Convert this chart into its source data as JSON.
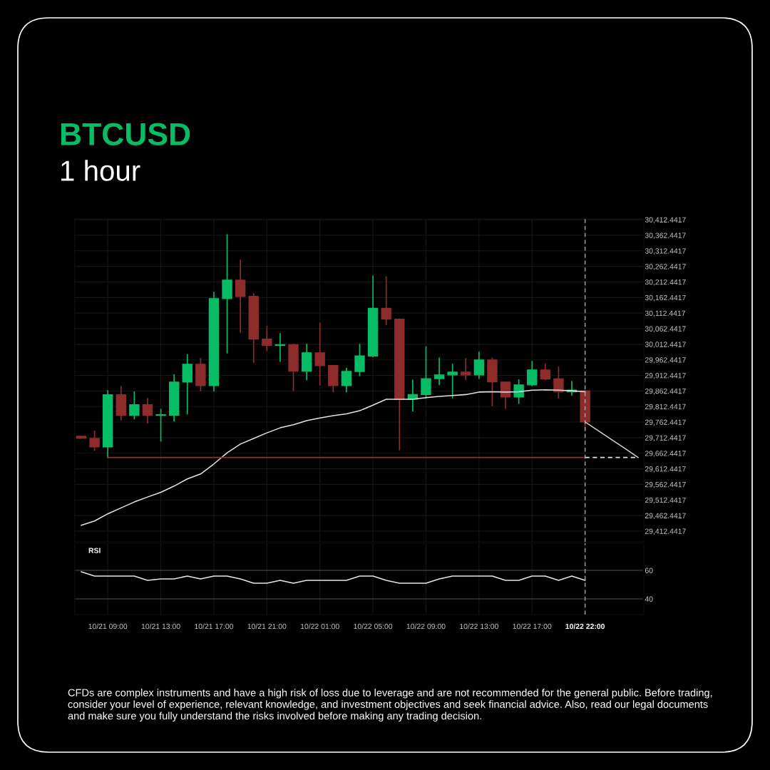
{
  "chart_data": [
    {
      "type": "candlestick",
      "title": "BTCUSD",
      "subtitle": "1 hour",
      "categories": [
        null,
        null,
        "10/21 09:00",
        null,
        null,
        null,
        "10/21 13:00",
        null,
        null,
        null,
        "10/21 17:00",
        null,
        null,
        null,
        "10/21 21:00",
        null,
        null,
        null,
        "10/22 01:00",
        null,
        null,
        null,
        "10/22 05:00",
        null,
        null,
        null,
        "10/22 09:00",
        null,
        null,
        null,
        "10/22 13:00",
        null,
        null,
        null,
        "10/22 17:00",
        null,
        null,
        null,
        "10/22 22:00",
        null,
        null,
        null,
        null
      ],
      "series": [
        {
          "type": "candlestick",
          "ohlc": [
            [
              29717,
              29717,
              29711,
              29711
            ],
            [
              29710,
              29733,
              29672,
              29683
            ],
            [
              29683,
              29863,
              29649,
              29850
            ],
            [
              29850,
              29876,
              29769,
              29784
            ],
            [
              29784,
              29859,
              29773,
              29818
            ],
            [
              29818,
              29838,
              29760,
              29784
            ],
            [
              29784,
              29803,
              29702,
              29786
            ],
            [
              29785,
              29914,
              29766,
              29891
            ],
            [
              29891,
              29979,
              29789,
              29948
            ],
            [
              29948,
              29966,
              29863,
              29880
            ],
            [
              29880,
              30179,
              29863,
              30159
            ],
            [
              30159,
              30364,
              29985,
              30218
            ],
            [
              30218,
              30282,
              30051,
              30166
            ],
            [
              30166,
              30175,
              29954,
              30029
            ],
            [
              30029,
              30069,
              29992,
              30009
            ],
            [
              30009,
              30046,
              29958,
              30011
            ],
            [
              30011,
              30012,
              29864,
              29926
            ],
            [
              29926,
              30012,
              29899,
              29985
            ],
            [
              29985,
              30080,
              29882,
              29944
            ],
            [
              29944,
              29944,
              29860,
              29880
            ],
            [
              29880,
              29935,
              29860,
              29925
            ],
            [
              29925,
              30012,
              29912,
              29975
            ],
            [
              29975,
              30231,
              29973,
              30128
            ],
            [
              30128,
              30229,
              30076,
              30093
            ],
            [
              30093,
              30093,
              29674,
              29836
            ],
            [
              29836,
              29897,
              29798,
              29851
            ],
            [
              29851,
              30004,
              29840,
              29902
            ],
            [
              29902,
              29968,
              29883,
              29914
            ],
            [
              29914,
              29948,
              29841,
              29923
            ],
            [
              29923,
              29966,
              29899,
              29914
            ],
            [
              29914,
              29987,
              29903,
              29962
            ],
            [
              29962,
              29968,
              29815,
              29892
            ],
            [
              29891,
              29891,
              29807,
              29843
            ],
            [
              29843,
              29898,
              29823,
              29882
            ],
            [
              29882,
              29957,
              29880,
              29930
            ],
            [
              29930,
              29949,
              29899,
              29901
            ],
            [
              29901,
              29939,
              29840,
              29860
            ],
            [
              29860,
              29893,
              29849,
              29865
            ],
            [
              29863,
              29863,
              29735,
              29763
            ],
            null,
            null,
            null,
            null
          ],
          "colors": [
            "#8e2b2b",
            "#8e2b2b",
            "#06bd65",
            "#8e2b2b",
            "#06bd65",
            "#8e2b2b",
            "#06bd65",
            "#06bd65",
            "#06bd65",
            "#8e2b2b",
            "#06bd65",
            "#06bd65",
            "#8e2b2b",
            "#8e2b2b",
            "#8e2b2b",
            "#06bd65",
            "#8e2b2b",
            "#06bd65",
            "#8e2b2b",
            "#8e2b2b",
            "#06bd65",
            "#06bd65",
            "#06bd65",
            "#8e2b2b",
            "#8e2b2b",
            "#06bd65",
            "#06bd65",
            "#06bd65",
            "#06bd65",
            "#8e2b2b",
            "#06bd65",
            "#8e2b2b",
            "#8e2b2b",
            "#06bd65",
            "#06bd65",
            "#8e2b2b",
            "#8e2b2b",
            "#06bd65",
            "#8e2b2b",
            null,
            null,
            null,
            null
          ]
        },
        {
          "type": "line",
          "color": "#e2e2e2",
          "values": [
            29431,
            29445,
            29468,
            29487,
            29506,
            29522,
            29537,
            29557,
            29580,
            29596,
            29628,
            29664,
            29692,
            29710,
            29728,
            29744,
            29754,
            29767,
            29776,
            29783,
            29789,
            29799,
            29817,
            29836,
            29836,
            29836,
            29841,
            29845,
            29848,
            29851,
            29859,
            29860,
            29859,
            29860,
            29865,
            29866,
            29865,
            29863,
            29860,
            null,
            null,
            null,
            null
          ]
        },
        {
          "type": "line",
          "color": "#9b2f2f",
          "values": [
            null,
            null,
            29649,
            29649,
            29649,
            29649,
            29649,
            29649,
            29649,
            29649,
            29649,
            29649,
            29649,
            29649,
            29649,
            29649,
            29649,
            29649,
            29649,
            29649,
            29649,
            29649,
            29649,
            29649,
            29649,
            29649,
            29649,
            29649,
            29649,
            29649,
            29649,
            29649,
            29649,
            29649,
            29649,
            29649,
            29649,
            29649,
            29649,
            null,
            null,
            null,
            null
          ]
        },
        {
          "type": "line",
          "color": "#e2e2e2",
          "line_style": "dashed",
          "values": [
            null,
            null,
            null,
            null,
            null,
            null,
            null,
            null,
            null,
            null,
            null,
            null,
            null,
            null,
            null,
            null,
            null,
            null,
            null,
            null,
            null,
            null,
            null,
            null,
            null,
            null,
            null,
            null,
            null,
            null,
            null,
            null,
            null,
            null,
            null,
            null,
            null,
            null,
            29649,
            29649,
            29649,
            29649,
            29649
          ]
        },
        {
          "type": "line",
          "color": "#d0d0d0",
          "values": [
            null,
            null,
            null,
            null,
            null,
            null,
            null,
            null,
            null,
            null,
            null,
            null,
            null,
            null,
            null,
            null,
            null,
            null,
            null,
            null,
            null,
            null,
            null,
            null,
            null,
            null,
            null,
            null,
            null,
            null,
            null,
            null,
            null,
            null,
            null,
            null,
            null,
            null,
            29763,
            29735,
            29706,
            29678,
            29649
          ]
        }
      ],
      "ref_lines": [
        {
          "axis": "x",
          "value": "10/22 22:00",
          "color": "#a6a6a6",
          "line_style": "dashed"
        }
      ],
      "ylim": [
        29378,
        30415
      ],
      "yticks": [
        {
          "value": 29412.4417,
          "label": "29,412.4417"
        },
        {
          "value": 29462.4417,
          "label": "29,462.4417"
        },
        {
          "value": 29512.4417,
          "label": "29,512.4417"
        },
        {
          "value": 29562.4417,
          "label": "29,562.4417"
        },
        {
          "value": 29612.4417,
          "label": "29,612.4417"
        },
        {
          "value": 29662.4417,
          "label": "29,662.4417"
        },
        {
          "value": 29712.4417,
          "label": "29,712.4417"
        },
        {
          "value": 29762.4417,
          "label": "29,762.4417"
        },
        {
          "value": 29812.4417,
          "label": "29,812.4417"
        },
        {
          "value": 29862.4417,
          "label": "29,862.4417"
        },
        {
          "value": 29912.4417,
          "label": "29,912.4417"
        },
        {
          "value": 29962.4417,
          "label": "29,962.4417"
        },
        {
          "value": 30012.4417,
          "label": "30,012.4417"
        },
        {
          "value": 30062.4417,
          "label": "30,062.4417"
        },
        {
          "value": 30112.4417,
          "label": "30,112.4417"
        },
        {
          "value": 30162.4417,
          "label": "30,162.4417"
        },
        {
          "value": 30212.4417,
          "label": "30,212.4417"
        },
        {
          "value": 30262.4417,
          "label": "30,262.4417"
        },
        {
          "value": 30312.4417,
          "label": "30,312.4417"
        },
        {
          "value": 30362.4417,
          "label": "30,362.4417"
        },
        {
          "value": 30412.4417,
          "label": "30,412.4417"
        }
      ],
      "tick_labels": "y",
      "grid": true,
      "annotations": [
        "CFDs are complex instruments and have a high risk of loss due to leverage and are not recommended for the general public. Before trading, consider your level of experience, relevant knowledge, and investment objectives and seek financial advice. Also, read our legal documents and make sure you fully understand the risks involved before making any trading decision."
      ]
    },
    {
      "type": "line",
      "title": "RSI",
      "color": "#e6e6e6",
      "categories": [
        null,
        null,
        "10/21 09:00",
        null,
        null,
        null,
        "10/21 13:00",
        null,
        null,
        null,
        "10/21 17:00",
        null,
        null,
        null,
        "10/21 21:00",
        null,
        null,
        null,
        "10/22 01:00",
        null,
        null,
        null,
        "10/22 05:00",
        null,
        null,
        null,
        "10/22 09:00",
        null,
        null,
        null,
        "10/22 13:00",
        null,
        null,
        null,
        "10/22 17:00",
        null,
        null,
        null,
        "10/22 22:00",
        null,
        null,
        null,
        null
      ],
      "values": [
        59,
        56,
        56,
        56,
        56,
        53,
        54,
        54,
        56,
        54,
        56,
        56,
        54,
        51,
        51,
        53,
        51,
        53,
        53,
        53,
        53,
        56,
        56,
        53,
        51,
        51,
        51,
        54,
        56,
        56,
        56,
        56,
        53,
        53,
        56,
        56,
        53,
        56,
        53,
        null,
        null,
        null,
        null
      ],
      "ref_lines": [
        {
          "axis": "x",
          "value": "10/22 22:00",
          "color": "#a6a6a6",
          "line_style": "dashed"
        }
      ],
      "ylim": [
        29,
        79
      ],
      "yticks": [
        40,
        60
      ],
      "grid": true
    }
  ]
}
